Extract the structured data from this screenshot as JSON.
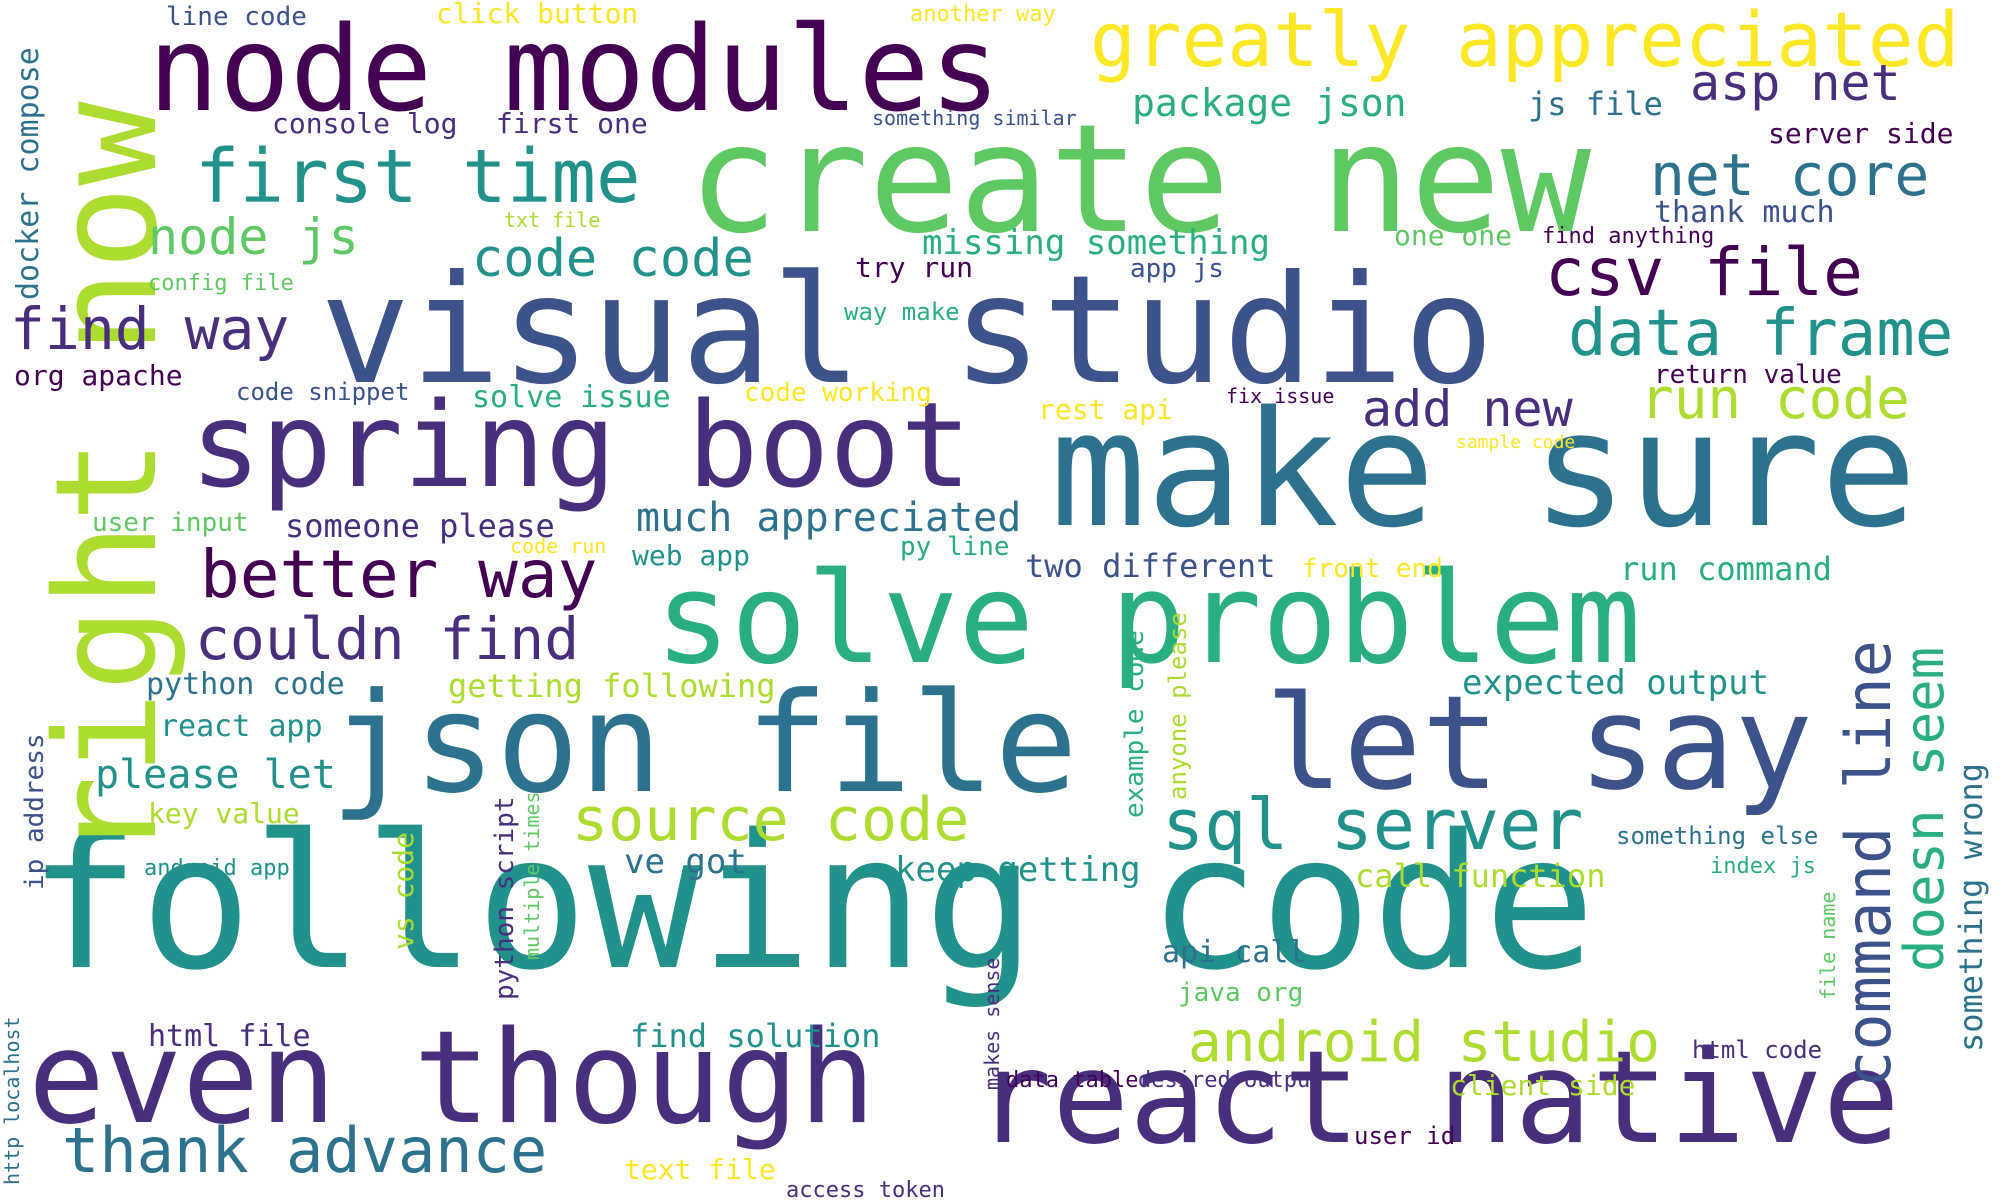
{
  "palette": [
    "#440154",
    "#472f7d",
    "#3b528b",
    "#2c728e",
    "#21918c",
    "#28ae80",
    "#5ec962",
    "#addc30",
    "#fde725"
  ],
  "words": [
    {
      "text": "following code",
      "color": "#21918c"
    },
    {
      "text": "make sure",
      "color": "#2c728e"
    },
    {
      "text": "visual studio",
      "color": "#3b528b"
    },
    {
      "text": "create new",
      "color": "#5ec962"
    },
    {
      "text": "json file",
      "color": "#2c728e"
    },
    {
      "text": "react native",
      "color": "#472f7d"
    },
    {
      "text": "even though",
      "color": "#472f7d"
    },
    {
      "text": "right now",
      "color": "#addc30"
    },
    {
      "text": "solve problem",
      "color": "#28ae80"
    },
    {
      "text": "spring boot",
      "color": "#472f7d"
    },
    {
      "text": "node modules",
      "color": "#440154"
    },
    {
      "text": "let say",
      "color": "#3b528b"
    },
    {
      "text": "greatly appreciated",
      "color": "#fde725"
    },
    {
      "text": "first time",
      "color": "#21918c"
    },
    {
      "text": "thank advance",
      "color": "#2c728e"
    },
    {
      "text": "better way",
      "color": "#440154"
    },
    {
      "text": "source code",
      "color": "#addc30"
    },
    {
      "text": "sql server",
      "color": "#21918c"
    },
    {
      "text": "csv file",
      "color": "#440154"
    },
    {
      "text": "command line",
      "color": "#3b528b"
    },
    {
      "text": "couldn find",
      "color": "#472f7d"
    },
    {
      "text": "android studio",
      "color": "#addc30"
    },
    {
      "text": "data frame",
      "color": "#21918c"
    },
    {
      "text": "find way",
      "color": "#472f7d"
    },
    {
      "text": "code code",
      "color": "#21918c"
    },
    {
      "text": "net core",
      "color": "#2c728e"
    },
    {
      "text": "doesn seem",
      "color": "#28ae80"
    },
    {
      "text": "run code",
      "color": "#addc30"
    },
    {
      "text": "node js",
      "color": "#5ec962"
    },
    {
      "text": "asp net",
      "color": "#472f7d"
    },
    {
      "text": "add new",
      "color": "#472f7d"
    },
    {
      "text": "much appreciated",
      "color": "#2c728e"
    },
    {
      "text": "please let",
      "color": "#21918c"
    },
    {
      "text": "something wrong",
      "color": "#2c728e"
    },
    {
      "text": "package json",
      "color": "#28ae80"
    },
    {
      "text": "missing something",
      "color": "#28ae80"
    },
    {
      "text": "expected output",
      "color": "#21918c"
    },
    {
      "text": "keep getting",
      "color": "#21918c"
    },
    {
      "text": "two different",
      "color": "#3b528b"
    },
    {
      "text": "someone please",
      "color": "#472f7d"
    },
    {
      "text": "find solution",
      "color": "#21918c"
    },
    {
      "text": "call function",
      "color": "#addc30"
    },
    {
      "text": "ve got",
      "color": "#2c728e"
    },
    {
      "text": "js file",
      "color": "#2c728e"
    },
    {
      "text": "getting following",
      "color": "#addc30"
    },
    {
      "text": "run command",
      "color": "#28ae80"
    },
    {
      "text": "python code",
      "color": "#2c728e"
    },
    {
      "text": "docker compose",
      "color": "#2c728e"
    },
    {
      "text": "api call",
      "color": "#2c728e"
    },
    {
      "text": "thank much",
      "color": "#3b528b"
    },
    {
      "text": "react app",
      "color": "#21918c"
    },
    {
      "text": "key value",
      "color": "#addc30"
    },
    {
      "text": "solve issue",
      "color": "#28ae80"
    },
    {
      "text": "html file",
      "color": "#472f7d"
    },
    {
      "text": "server side",
      "color": "#440154"
    },
    {
      "text": "web app",
      "color": "#21918c"
    },
    {
      "text": "try run",
      "color": "#440154"
    },
    {
      "text": "one one",
      "color": "#5ec962"
    },
    {
      "text": "client side",
      "color": "#addc30"
    },
    {
      "text": "console log",
      "color": "#472f7d"
    },
    {
      "text": "first one",
      "color": "#472f7d"
    },
    {
      "text": "example code",
      "color": "#28ae80"
    },
    {
      "text": "org apache",
      "color": "#440154"
    },
    {
      "text": "return value",
      "color": "#440154"
    },
    {
      "text": "user input",
      "color": "#5ec962"
    },
    {
      "text": "rest api",
      "color": "#fde725"
    },
    {
      "text": "vs code",
      "color": "#addc30"
    },
    {
      "text": "front end",
      "color": "#fde725"
    },
    {
      "text": "something else",
      "color": "#2c728e"
    },
    {
      "text": "click button",
      "color": "#fde725"
    },
    {
      "text": "text file",
      "color": "#fde725"
    },
    {
      "text": "py line",
      "color": "#28ae80"
    },
    {
      "text": "python script",
      "color": "#472f7d"
    },
    {
      "text": "code snippet",
      "color": "#3b528b"
    },
    {
      "text": "code working",
      "color": "#fde725"
    },
    {
      "text": "java org",
      "color": "#5ec962"
    },
    {
      "text": "html code",
      "color": "#472f7d"
    },
    {
      "text": "app js",
      "color": "#3b528b"
    },
    {
      "text": "ip address",
      "color": "#3b528b"
    },
    {
      "text": "line code",
      "color": "#3b528b"
    },
    {
      "text": "anyone please",
      "color": "#addc30"
    },
    {
      "text": "data table",
      "color": "#440154"
    },
    {
      "text": "desired output",
      "color": "#472f7d"
    },
    {
      "text": "user id",
      "color": "#440154"
    },
    {
      "text": "way make",
      "color": "#28ae80"
    },
    {
      "text": "access token",
      "color": "#472f7d"
    },
    {
      "text": "index js",
      "color": "#28ae80"
    },
    {
      "text": "fix issue",
      "color": "#440154"
    },
    {
      "text": "another way",
      "color": "#fde725"
    },
    {
      "text": "find anything",
      "color": "#440154"
    },
    {
      "text": "android app",
      "color": "#21918c"
    },
    {
      "text": "config file",
      "color": "#5ec962"
    },
    {
      "text": "multiple times",
      "color": "#5ec962"
    },
    {
      "text": "http localhost",
      "color": "#2c728e"
    },
    {
      "text": "something similar",
      "color": "#3b528b"
    },
    {
      "text": "txt file",
      "color": "#addc30"
    },
    {
      "text": "code run",
      "color": "#fde725"
    },
    {
      "text": "sample code",
      "color": "#fde725"
    },
    {
      "text": "file name",
      "color": "#5ec962"
    },
    {
      "text": "makes sense",
      "color": "#472f7d"
    }
  ]
}
